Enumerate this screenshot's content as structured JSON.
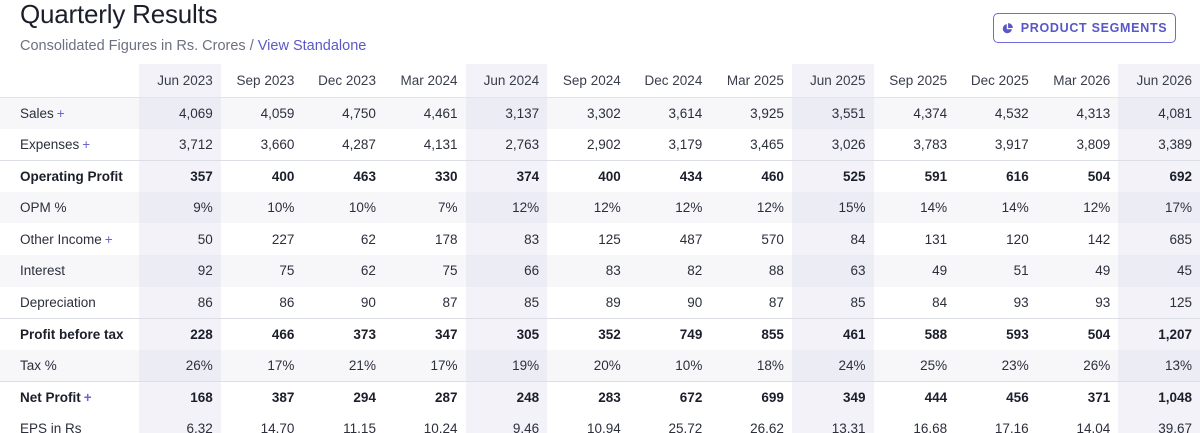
{
  "header": {
    "title": "Quarterly Results",
    "subtitle": "Consolidated Figures in Rs. Crores",
    "separator": "/",
    "link": "View Standalone"
  },
  "segments_button": {
    "label": "PRODUCT SEGMENTS",
    "icon": "pie-chart-icon"
  },
  "table": {
    "columns": [
      "Jun 2023",
      "Sep 2023",
      "Dec 2023",
      "Mar 2024",
      "Jun 2024",
      "Sep 2024",
      "Dec 2024",
      "Mar 2025",
      "Jun 2025",
      "Sep 2025",
      "Dec 2025",
      "Mar 2026",
      "Jun 2026"
    ],
    "rows": [
      {
        "label": "Sales",
        "plus": "+",
        "values": [
          "4,069",
          "4,059",
          "4,750",
          "4,461",
          "3,137",
          "3,302",
          "3,614",
          "3,925",
          "3,551",
          "4,374",
          "4,532",
          "4,313",
          "4,081"
        ]
      },
      {
        "label": "Expenses",
        "plus": "+",
        "values": [
          "3,712",
          "3,660",
          "4,287",
          "4,131",
          "2,763",
          "2,902",
          "3,179",
          "3,465",
          "3,026",
          "3,783",
          "3,917",
          "3,809",
          "3,389"
        ]
      },
      {
        "label": "Operating Profit",
        "plus": "",
        "values": [
          "357",
          "400",
          "463",
          "330",
          "374",
          "400",
          "434",
          "460",
          "525",
          "591",
          "616",
          "504",
          "692"
        ]
      },
      {
        "label": "OPM %",
        "plus": "",
        "values": [
          "9%",
          "10%",
          "10%",
          "7%",
          "12%",
          "12%",
          "12%",
          "12%",
          "15%",
          "14%",
          "14%",
          "12%",
          "17%"
        ]
      },
      {
        "label": "Other Income",
        "plus": "+",
        "values": [
          "50",
          "227",
          "62",
          "178",
          "83",
          "125",
          "487",
          "570",
          "84",
          "131",
          "120",
          "142",
          "685"
        ]
      },
      {
        "label": "Interest",
        "plus": "",
        "values": [
          "92",
          "75",
          "62",
          "75",
          "66",
          "83",
          "82",
          "88",
          "63",
          "49",
          "51",
          "49",
          "45"
        ]
      },
      {
        "label": "Depreciation",
        "plus": "",
        "values": [
          "86",
          "86",
          "90",
          "87",
          "85",
          "89",
          "90",
          "87",
          "85",
          "84",
          "93",
          "93",
          "125"
        ]
      },
      {
        "label": "Profit before tax",
        "plus": "",
        "values": [
          "228",
          "466",
          "373",
          "347",
          "305",
          "352",
          "749",
          "855",
          "461",
          "588",
          "593",
          "504",
          "1,207"
        ]
      },
      {
        "label": "Tax %",
        "plus": "",
        "values": [
          "26%",
          "17%",
          "21%",
          "17%",
          "19%",
          "20%",
          "10%",
          "18%",
          "24%",
          "25%",
          "23%",
          "26%",
          "13%"
        ]
      },
      {
        "label": "Net Profit",
        "plus": "+",
        "values": [
          "168",
          "387",
          "294",
          "287",
          "248",
          "283",
          "672",
          "699",
          "349",
          "444",
          "456",
          "371",
          "1,048"
        ]
      },
      {
        "label": "EPS in Rs",
        "plus": "",
        "values": [
          "6.32",
          "14.70",
          "11.15",
          "10.24",
          "9.46",
          "10.94",
          "25.72",
          "26.62",
          "13.31",
          "16.68",
          "17.16",
          "14.04",
          "39.67"
        ]
      }
    ]
  }
}
